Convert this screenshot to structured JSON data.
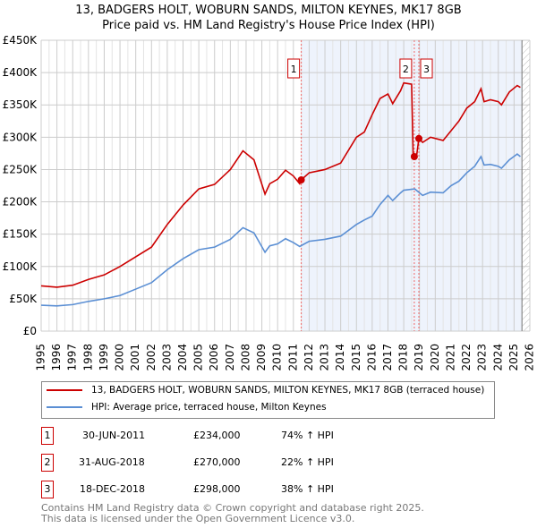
{
  "title": "13, BADGERS HOLT, WOBURN SANDS, MILTON KEYNES, MK17 8GB",
  "subtitle": "Price paid vs. HM Land Registry's House Price Index (HPI)",
  "chart_data": {
    "type": "line",
    "xlim": [
      1995,
      2026
    ],
    "ylim": [
      0,
      450000
    ],
    "yticks": [
      {
        "v": 0,
        "l": "£0"
      },
      {
        "v": 50000,
        "l": "£50K"
      },
      {
        "v": 100000,
        "l": "£100K"
      },
      {
        "v": 150000,
        "l": "£150K"
      },
      {
        "v": 200000,
        "l": "£200K"
      },
      {
        "v": 250000,
        "l": "£250K"
      },
      {
        "v": 300000,
        "l": "£300K"
      },
      {
        "v": 350000,
        "l": "£350K"
      },
      {
        "v": 400000,
        "l": "£400K"
      },
      {
        "v": 450000,
        "l": "£450K"
      }
    ],
    "xticks": [
      "1995",
      "1996",
      "1997",
      "1998",
      "1999",
      "2000",
      "2001",
      "2002",
      "2003",
      "2004",
      "2005",
      "2006",
      "2007",
      "2008",
      "2009",
      "2010",
      "2011",
      "2012",
      "2013",
      "2014",
      "2015",
      "2016",
      "2017",
      "2018",
      "2019",
      "2020",
      "2021",
      "2022",
      "2023",
      "2024",
      "2025",
      "2026"
    ],
    "series": [
      {
        "name": "13, BADGERS HOLT, WOBURN SANDS, MILTON KEYNES, MK17 8GB (terraced house)",
        "color": "#cc0000",
        "points": [
          [
            1995,
            70000
          ],
          [
            1996,
            68000
          ],
          [
            1997,
            71000
          ],
          [
            1998,
            80000
          ],
          [
            1999,
            87000
          ],
          [
            2000,
            100000
          ],
          [
            2001,
            115000
          ],
          [
            2002,
            130000
          ],
          [
            2003,
            165000
          ],
          [
            2004,
            195000
          ],
          [
            2005,
            220000
          ],
          [
            2006,
            227000
          ],
          [
            2007,
            250000
          ],
          [
            2007.8,
            279000
          ],
          [
            2008.5,
            265000
          ],
          [
            2009.2,
            212000
          ],
          [
            2009.5,
            228000
          ],
          [
            2010,
            235000
          ],
          [
            2010.5,
            249000
          ],
          [
            2011,
            240000
          ],
          [
            2011.4,
            228000
          ],
          [
            2011.5,
            234000
          ],
          [
            2012,
            245000
          ],
          [
            2013,
            250000
          ],
          [
            2014,
            260000
          ],
          [
            2015,
            300000
          ],
          [
            2015.5,
            308000
          ],
          [
            2016,
            335000
          ],
          [
            2016.5,
            360000
          ],
          [
            2017,
            367000
          ],
          [
            2017.3,
            352000
          ],
          [
            2017.8,
            372000
          ],
          [
            2018,
            384000
          ],
          [
            2018.5,
            382000
          ],
          [
            2018.6,
            270000
          ],
          [
            2018.8,
            268000
          ],
          [
            2018.96,
            298000
          ],
          [
            2019.2,
            292000
          ],
          [
            2019.7,
            300000
          ],
          [
            2020.5,
            295000
          ],
          [
            2021,
            310000
          ],
          [
            2021.5,
            325000
          ],
          [
            2022,
            345000
          ],
          [
            2022.5,
            355000
          ],
          [
            2022.9,
            375000
          ],
          [
            2023.1,
            355000
          ],
          [
            2023.5,
            358000
          ],
          [
            2024,
            355000
          ],
          [
            2024.2,
            350000
          ],
          [
            2024.7,
            370000
          ],
          [
            2025.2,
            380000
          ],
          [
            2025.4,
            377000
          ]
        ]
      },
      {
        "name": "HPI: Average price, terraced house, Milton Keynes",
        "color": "#5b8fd4",
        "points": [
          [
            1995,
            40000
          ],
          [
            1996,
            39000
          ],
          [
            1997,
            41000
          ],
          [
            1998,
            46000
          ],
          [
            1999,
            50000
          ],
          [
            2000,
            55000
          ],
          [
            2001,
            65000
          ],
          [
            2002,
            75000
          ],
          [
            2003,
            95000
          ],
          [
            2004,
            112000
          ],
          [
            2005,
            126000
          ],
          [
            2006,
            130000
          ],
          [
            2007,
            142000
          ],
          [
            2007.8,
            160000
          ],
          [
            2008.5,
            152000
          ],
          [
            2009.2,
            122000
          ],
          [
            2009.5,
            132000
          ],
          [
            2010,
            135000
          ],
          [
            2010.5,
            143000
          ],
          [
            2011,
            137000
          ],
          [
            2011.4,
            131000
          ],
          [
            2012,
            139000
          ],
          [
            2013,
            142000
          ],
          [
            2014,
            147000
          ],
          [
            2015,
            165000
          ],
          [
            2015.5,
            172000
          ],
          [
            2016,
            178000
          ],
          [
            2016.5,
            196000
          ],
          [
            2017,
            210000
          ],
          [
            2017.3,
            202000
          ],
          [
            2017.8,
            214000
          ],
          [
            2018,
            218000
          ],
          [
            2018.7,
            220000
          ],
          [
            2019.2,
            210000
          ],
          [
            2019.7,
            215000
          ],
          [
            2020.5,
            214000
          ],
          [
            2021,
            225000
          ],
          [
            2021.5,
            232000
          ],
          [
            2022,
            245000
          ],
          [
            2022.5,
            255000
          ],
          [
            2022.9,
            270000
          ],
          [
            2023.1,
            257000
          ],
          [
            2023.5,
            258000
          ],
          [
            2024,
            255000
          ],
          [
            2024.2,
            252000
          ],
          [
            2024.7,
            265000
          ],
          [
            2025.2,
            274000
          ],
          [
            2025.4,
            270000
          ]
        ]
      }
    ],
    "sales": [
      {
        "n": "1",
        "x": 2011.5,
        "y": 234000
      },
      {
        "n": "2",
        "x": 2018.67,
        "y": 270000
      },
      {
        "n": "3",
        "x": 2018.96,
        "y": 298000
      }
    ]
  },
  "transactions": [
    {
      "n": "1",
      "date": "30-JUN-2011",
      "price": "£234,000",
      "hpi": "74% ↑ HPI"
    },
    {
      "n": "2",
      "date": "31-AUG-2018",
      "price": "£270,000",
      "hpi": "22% ↑ HPI"
    },
    {
      "n": "3",
      "date": "18-DEC-2018",
      "price": "£298,000",
      "hpi": "38% ↑ HPI"
    }
  ],
  "footer": [
    "Contains HM Land Registry data © Crown copyright and database right 2025.",
    "This data is licensed under the Open Government Licence v3.0."
  ]
}
